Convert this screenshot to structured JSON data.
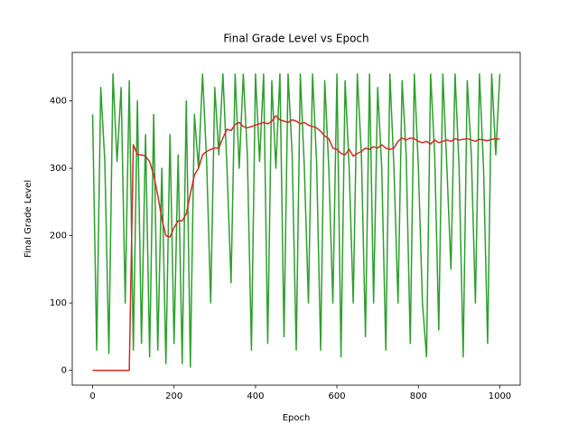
{
  "chart_data": {
    "type": "line",
    "title": "Final Grade Level vs Epoch",
    "x_label": "Epoch",
    "y_label": "Final Grade Level",
    "x": [
      0,
      10,
      20,
      30,
      40,
      50,
      60,
      70,
      80,
      90,
      100,
      110,
      120,
      130,
      140,
      150,
      160,
      170,
      180,
      190,
      200,
      210,
      220,
      230,
      240,
      250,
      260,
      270,
      280,
      290,
      300,
      310,
      320,
      330,
      340,
      350,
      360,
      370,
      380,
      390,
      400,
      410,
      420,
      430,
      440,
      450,
      460,
      470,
      480,
      490,
      500,
      510,
      520,
      530,
      540,
      550,
      560,
      570,
      580,
      590,
      600,
      610,
      620,
      630,
      640,
      650,
      660,
      670,
      680,
      690,
      700,
      710,
      720,
      730,
      740,
      750,
      760,
      770,
      780,
      790,
      800,
      810,
      820,
      830,
      840,
      850,
      860,
      870,
      880,
      890,
      900,
      910,
      920,
      930,
      940,
      950,
      960,
      970,
      980,
      990,
      1000
    ],
    "series": [
      {
        "color": "#2ca02c",
        "values": [
          380,
          30,
          420,
          310,
          25,
          440,
          310,
          420,
          100,
          430,
          30,
          400,
          40,
          350,
          20,
          380,
          30,
          300,
          10,
          350,
          40,
          320,
          10,
          400,
          5,
          380,
          300,
          440,
          310,
          100,
          420,
          320,
          440,
          300,
          130,
          440,
          300,
          440,
          320,
          30,
          440,
          310,
          440,
          40,
          430,
          300,
          440,
          50,
          440,
          320,
          30,
          440,
          300,
          100,
          440,
          310,
          30,
          430,
          300,
          100,
          440,
          20,
          430,
          300,
          100,
          440,
          320,
          50,
          440,
          100,
          420,
          300,
          30,
          440,
          300,
          100,
          430,
          320,
          40,
          440,
          300,
          100,
          20,
          440,
          320,
          60,
          440,
          300,
          150,
          440,
          300,
          20,
          430,
          320,
          100,
          440,
          300,
          40,
          440,
          320,
          440
        ]
      },
      {
        "color": "#d62728",
        "values": [
          0,
          0,
          0,
          0,
          0,
          0,
          0,
          0,
          0,
          0,
          335,
          320,
          320,
          318,
          310,
          290,
          260,
          225,
          200,
          198,
          212,
          222,
          222,
          232,
          262,
          290,
          300,
          320,
          325,
          328,
          330,
          330,
          345,
          358,
          356,
          365,
          368,
          362,
          360,
          362,
          364,
          366,
          368,
          366,
          370,
          378,
          372,
          370,
          368,
          372,
          370,
          366,
          368,
          364,
          362,
          360,
          355,
          348,
          344,
          330,
          328,
          322,
          320,
          328,
          318,
          322,
          325,
          330,
          328,
          332,
          330,
          335,
          330,
          328,
          330,
          340,
          345,
          342,
          345,
          344,
          340,
          338,
          340,
          336,
          342,
          338,
          340,
          342,
          340,
          344,
          342,
          343,
          344,
          342,
          340,
          343,
          342,
          341,
          343,
          344,
          343
        ]
      }
    ],
    "xlim": [
      -50,
      1050
    ],
    "ylim": [
      -22,
      472
    ],
    "xticks": [
      0,
      200,
      400,
      600,
      800,
      1000
    ],
    "yticks": [
      0,
      100,
      200,
      300,
      400
    ],
    "grid": false
  }
}
